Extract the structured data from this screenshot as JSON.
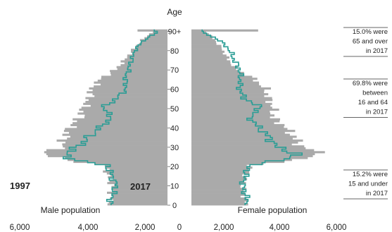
{
  "chart_data": {
    "type": "bar",
    "orientation": "horizontal-pyramid",
    "title": "Age",
    "x_unit_note": "",
    "age_ticks": [
      "0",
      "10",
      "20",
      "30",
      "40",
      "50",
      "60",
      "70",
      "80",
      "90+"
    ],
    "x_ticks": [
      "6,000",
      "4,000",
      "2,000",
      "0",
      "2,000",
      "4,000",
      "6,000"
    ],
    "xlim": [
      0,
      6000
    ],
    "left_label": "Male population",
    "right_label": "Female population",
    "series": [
      {
        "name": "2017",
        "legend_label": "2017",
        "color": "#aaaaaa",
        "style": "bars"
      },
      {
        "name": "1997",
        "legend_label": "1997",
        "color": "#2a9d95",
        "style": "step-line"
      }
    ],
    "age_keys": [
      0,
      10,
      20,
      23,
      26,
      30,
      35,
      40,
      45,
      50,
      55,
      60,
      65,
      70,
      75,
      80,
      85,
      89,
      90
    ],
    "male_2017": [
      2550,
      2500,
      2800,
      4500,
      5600,
      4700,
      4600,
      4400,
      3900,
      3800,
      3500,
      3400,
      3000,
      2300,
      1900,
      1550,
      1150,
      700,
      1300
    ],
    "female_2017": [
      2450,
      2300,
      2650,
      4600,
      5950,
      4900,
      4600,
      4200,
      3650,
      3650,
      3450,
      3300,
      2800,
      2000,
      1650,
      1400,
      1050,
      700,
      2900
    ],
    "male_1997": [
      2600,
      2300,
      2700,
      4200,
      4600,
      4000,
      3500,
      3000,
      2500,
      2900,
      2250,
      1850,
      1900,
      1750,
      1600,
      1450,
      1050,
      450,
      600
    ],
    "female_1997": [
      2550,
      2300,
      2550,
      4100,
      4700,
      3800,
      3450,
      3000,
      2600,
      3100,
      2350,
      2150,
      2200,
      2150,
      1900,
      1700,
      1250,
      500,
      500
    ],
    "annotations": [
      {
        "lines": [
          "15.0% were",
          "65 and over",
          "in 2017"
        ]
      },
      {
        "lines": [
          "69.8% were",
          "between",
          "16 and 64",
          "in 2017"
        ]
      },
      {
        "lines": [
          "15.2% were",
          "15 and under",
          "in 2017"
        ]
      }
    ],
    "colors": {
      "bars_2017": "#aaaaaa",
      "line_1997": "#2a9d95",
      "text": "#222222"
    }
  }
}
